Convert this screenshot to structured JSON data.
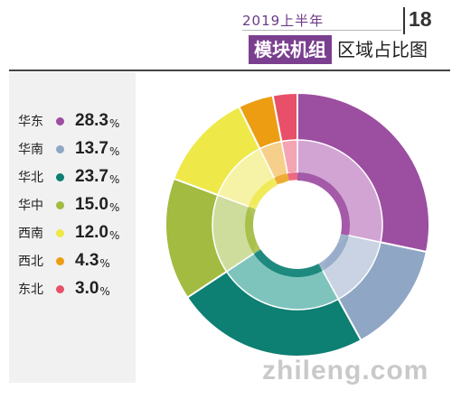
{
  "header": {
    "year_label": "2019上半年",
    "title": "模块机组",
    "subtitle": "区域占比图",
    "page_number": "18"
  },
  "watermark": "zhileng.com",
  "colors": {
    "title_bg": "#7b3f8f",
    "legend_bg": "#f1f1f1"
  },
  "chart_data": {
    "type": "pie",
    "style": "donut",
    "categories": [
      "华东",
      "华南",
      "华北",
      "华中",
      "西南",
      "西北",
      "东北"
    ],
    "values": [
      28.3,
      13.7,
      23.7,
      15.0,
      12.0,
      4.3,
      3.0
    ],
    "value_labels": [
      "28.3",
      "13.7",
      "23.7",
      "15.0",
      "12.0",
      "4.3",
      "3.0"
    ],
    "unit": "%",
    "colors": [
      "#9c4ea0",
      "#8fa6c4",
      "#0d7f73",
      "#a2bb40",
      "#eee848",
      "#ec9d12",
      "#e8506a"
    ],
    "inner_colors": [
      "#d2a4d4",
      "#c9d3e3",
      "#7ec4bd",
      "#cfdd9c",
      "#f7f3a6",
      "#f6cf8a",
      "#f4a5b3"
    ],
    "legend_position": "left"
  }
}
